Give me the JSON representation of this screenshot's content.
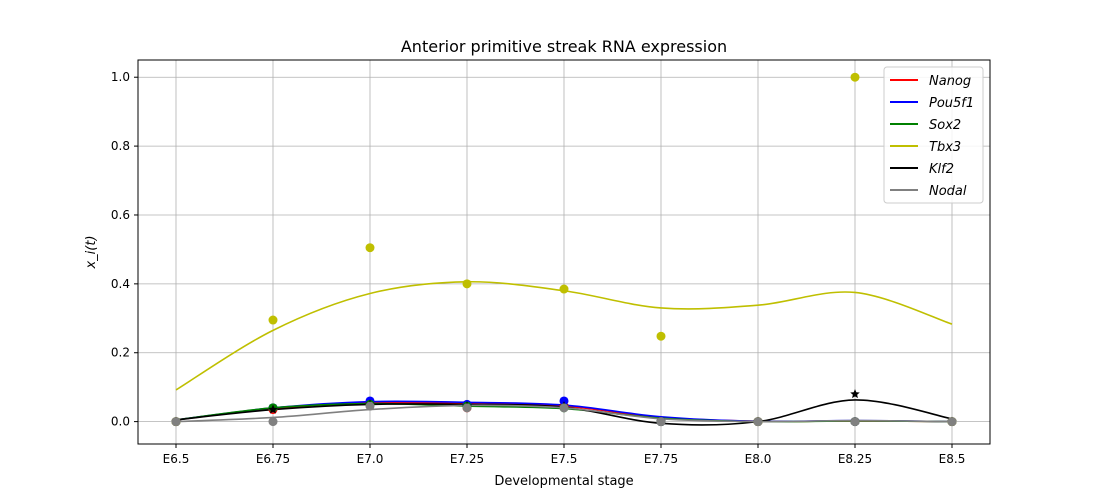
{
  "chart_data": {
    "type": "line",
    "title": "Anterior primitive streak RNA expression",
    "xlabel": "Developmental stage",
    "ylabel": "x_i(t)",
    "categories": [
      "E6.5",
      "E6.75",
      "E7.0",
      "E7.25",
      "E7.5",
      "E7.75",
      "E8.0",
      "E8.25",
      "E8.5"
    ],
    "yticks": [
      "0.0",
      "0.2",
      "0.4",
      "0.6",
      "0.8",
      "1.0"
    ],
    "ylim": [
      -0.065,
      1.05
    ],
    "grid": true,
    "legend_position": "top-right",
    "series": [
      {
        "name": "Nanog",
        "color": "#ff0000",
        "marker": "circle",
        "points": [
          0.0,
          0.035,
          0.055,
          0.04,
          0.045,
          0.0,
          0.0,
          0.0,
          0.0
        ],
        "curve": [
          0.005,
          0.038,
          0.055,
          0.052,
          0.045,
          0.012,
          0.001,
          0.002,
          0.0
        ]
      },
      {
        "name": "Pou5f1",
        "color": "#0000ff",
        "marker": "circle",
        "points": [
          0.0,
          0.04,
          0.06,
          0.05,
          0.06,
          0.0,
          0.0,
          0.0,
          0.0
        ],
        "curve": [
          0.005,
          0.04,
          0.058,
          0.056,
          0.048,
          0.014,
          0.001,
          0.003,
          0.0
        ]
      },
      {
        "name": "Sox2",
        "color": "#008000",
        "marker": "circle",
        "points": [
          0.0,
          0.04,
          0.05,
          0.045,
          0.04,
          0.0,
          0.0,
          0.0,
          0.0
        ],
        "curve": [
          0.005,
          0.04,
          0.052,
          0.045,
          0.038,
          0.01,
          0.0,
          0.002,
          0.0
        ]
      },
      {
        "name": "Tbx3",
        "color": "#bfbf00",
        "marker": "circle",
        "points": [
          0.0,
          0.295,
          0.505,
          0.4,
          0.385,
          0.248,
          0.0,
          1.0,
          0.0
        ],
        "curve": [
          0.092,
          0.265,
          0.372,
          0.406,
          0.38,
          0.33,
          0.338,
          0.375,
          0.283
        ]
      },
      {
        "name": "Klf2",
        "color": "#000000",
        "marker": "star",
        "points": [
          0.0,
          0.035,
          0.05,
          0.045,
          0.045,
          0.0,
          0.0,
          0.08,
          0.0
        ],
        "curve": [
          0.005,
          0.035,
          0.05,
          0.05,
          0.042,
          -0.005,
          0.0,
          0.063,
          0.008
        ]
      },
      {
        "name": "Nodal",
        "color": "#808080",
        "marker": "circle",
        "points": [
          0.0,
          0.0,
          0.045,
          0.04,
          0.04,
          0.0,
          0.0,
          0.0,
          0.0
        ],
        "curve": [
          0.0,
          0.012,
          0.035,
          0.047,
          0.04,
          0.008,
          0.0,
          0.003,
          0.0
        ]
      }
    ]
  }
}
